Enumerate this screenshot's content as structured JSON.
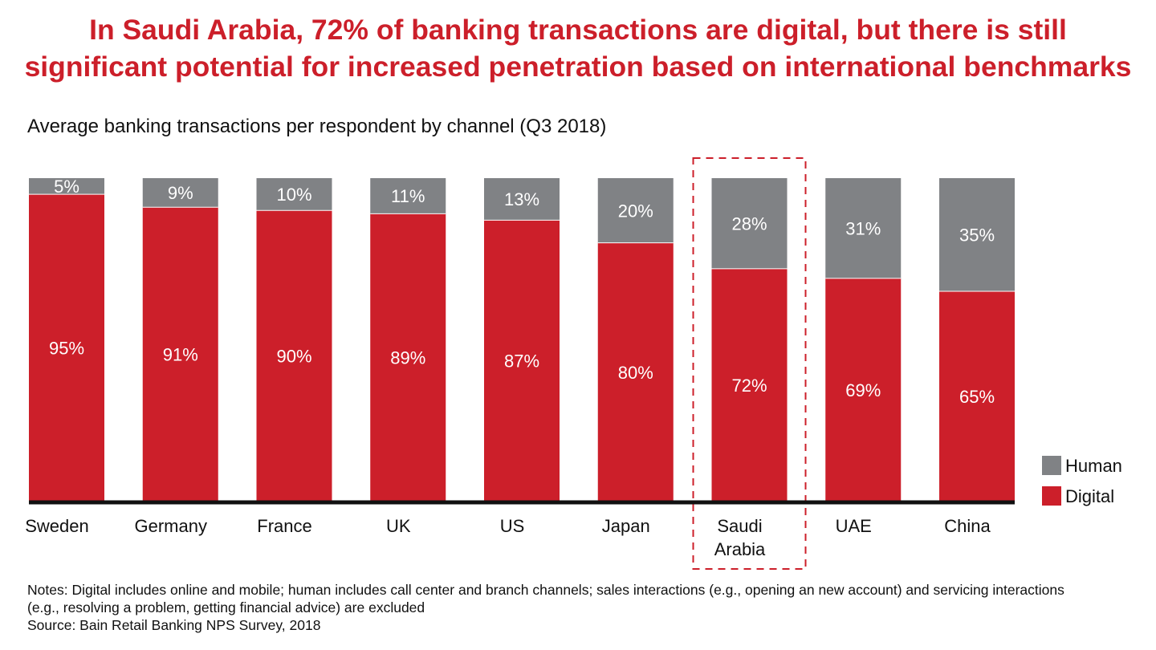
{
  "headline": {
    "line1": "In Saudi Arabia, 72% of banking transactions are digital, but there is still",
    "line2": "significant potential for increased penetration based on international benchmarks"
  },
  "notes": {
    "line1": "Notes: Digital includes online and mobile; human includes call center and branch channels; sales interactions (e.g., opening an new account) and servicing interactions",
    "line2": "(e.g., resolving a problem, getting financial advice) are excluded",
    "source": "Source: Bain Retail Banking NPS Survey, 2018"
  },
  "chart_data": {
    "type": "bar",
    "stacked": true,
    "title": "Average banking transactions per respondent by channel (Q3 2018)",
    "categories": [
      [
        "Sweden"
      ],
      [
        "Germany"
      ],
      [
        "France"
      ],
      [
        "UK"
      ],
      [
        "US"
      ],
      [
        "Japan"
      ],
      [
        "Saudi",
        "Arabia"
      ],
      [
        "UAE"
      ],
      [
        "China"
      ]
    ],
    "series": [
      {
        "name": "Digital",
        "values": [
          95,
          91,
          90,
          89,
          87,
          80,
          72,
          69,
          65
        ],
        "color": "#cc1f2a"
      },
      {
        "name": "Human",
        "values": [
          5,
          9,
          10,
          11,
          13,
          20,
          28,
          31,
          35
        ],
        "color": "#808285"
      }
    ],
    "unit": "%",
    "ylim": [
      0,
      100
    ],
    "highlight_category": "Saudi Arabia",
    "legend_position": "right",
    "grid": false
  }
}
